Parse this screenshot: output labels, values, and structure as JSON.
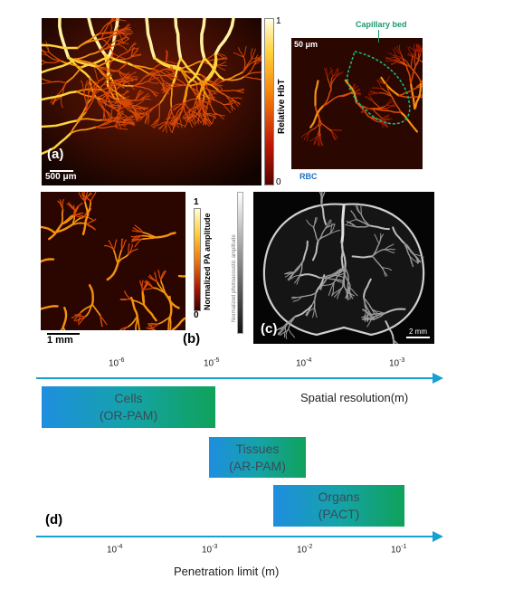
{
  "panels": {
    "a": {
      "label": "(a)",
      "scalebar": "500 μm",
      "colorbar_title": "Relative HbT",
      "colorbar_max": "1",
      "colorbar_min": "0",
      "inset_scalebar": "50 μm",
      "capillary_label": "Capillary bed",
      "rbc_label": "RBC"
    },
    "b": {
      "label": "(b)",
      "scalebar": "1 mm",
      "colorbar_title": "Normalized PA amplitude",
      "colorbar_max": "1",
      "colorbar_min": "0"
    },
    "c": {
      "label": "(c)",
      "scalebar": "2 mm",
      "colorbar_title": "Normalized photoacoustic amplitude"
    },
    "d": {
      "label": "(d)",
      "top_axis_title": "Spatial resolution(m)",
      "bottom_axis_title": "Penetration limit (m)",
      "top_ticks": [
        {
          "base": "10",
          "exp": "-6"
        },
        {
          "base": "10",
          "exp": "-5"
        },
        {
          "base": "10",
          "exp": "-4"
        },
        {
          "base": "10",
          "exp": "-3"
        }
      ],
      "bottom_ticks": [
        {
          "base": "10",
          "exp": "-4"
        },
        {
          "base": "10",
          "exp": "-3"
        },
        {
          "base": "10",
          "exp": "-2"
        },
        {
          "base": "10",
          "exp": "-1"
        }
      ],
      "boxes": [
        {
          "line1": "Cells",
          "line2": "(OR-PAM)"
        },
        {
          "line1": "Tissues",
          "line2": "(AR-PAM)"
        },
        {
          "line1": "Organs",
          "line2": "(PACT)"
        }
      ],
      "accent_color": "#17a1d2"
    }
  }
}
